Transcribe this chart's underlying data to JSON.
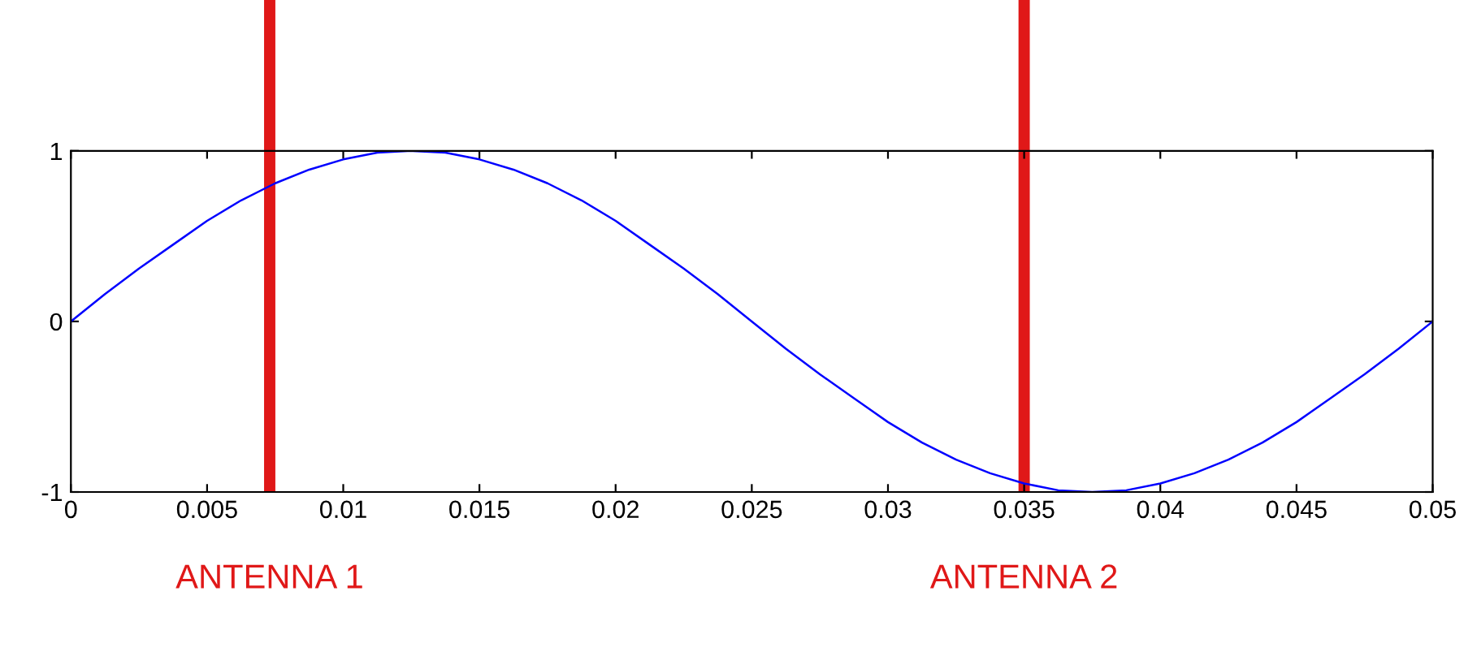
{
  "chart_data": {
    "type": "line",
    "x": [
      0,
      0.00125,
      0.0025,
      0.00375,
      0.005,
      0.00625,
      0.0075,
      0.00875,
      0.01,
      0.01125,
      0.0125,
      0.01375,
      0.015,
      0.01625,
      0.0175,
      0.01875,
      0.02,
      0.02125,
      0.0225,
      0.02375,
      0.025,
      0.02625,
      0.0275,
      0.02875,
      0.03,
      0.03125,
      0.0325,
      0.03375,
      0.035,
      0.03625,
      0.0375,
      0.03875,
      0.04,
      0.04125,
      0.0425,
      0.04375,
      0.045,
      0.04625,
      0.0475,
      0.04875,
      0.05
    ],
    "series": [
      {
        "color": "#0000ff",
        "values": [
          0,
          0.16,
          0.31,
          0.45,
          0.59,
          0.71,
          0.81,
          0.89,
          0.95,
          0.99,
          1,
          0.99,
          0.95,
          0.89,
          0.81,
          0.71,
          0.59,
          0.45,
          0.31,
          0.16,
          0,
          -0.16,
          -0.31,
          -0.45,
          -0.59,
          -0.71,
          -0.81,
          -0.89,
          -0.95,
          -0.99,
          -1,
          -0.99,
          -0.95,
          -0.89,
          -0.81,
          -0.71,
          -0.59,
          -0.45,
          -0.31,
          -0.16,
          0
        ]
      }
    ],
    "xlim": [
      0,
      0.05
    ],
    "ylim": [
      -1,
      1
    ],
    "xticks": [
      0,
      0.005,
      0.01,
      0.015,
      0.02,
      0.025,
      0.03,
      0.035,
      0.04,
      0.045,
      0.05
    ],
    "yticks": [
      -1,
      0,
      1
    ],
    "ref_lines": [
      {
        "axis": "x",
        "value": 0.0073,
        "label": "ANTENNA 1",
        "color": "#e01818"
      },
      {
        "axis": "x",
        "value": 0.035,
        "label": "ANTENNA 2",
        "color": "#e01818"
      }
    ],
    "grid": false,
    "line_style": "solid",
    "marker": "none"
  }
}
